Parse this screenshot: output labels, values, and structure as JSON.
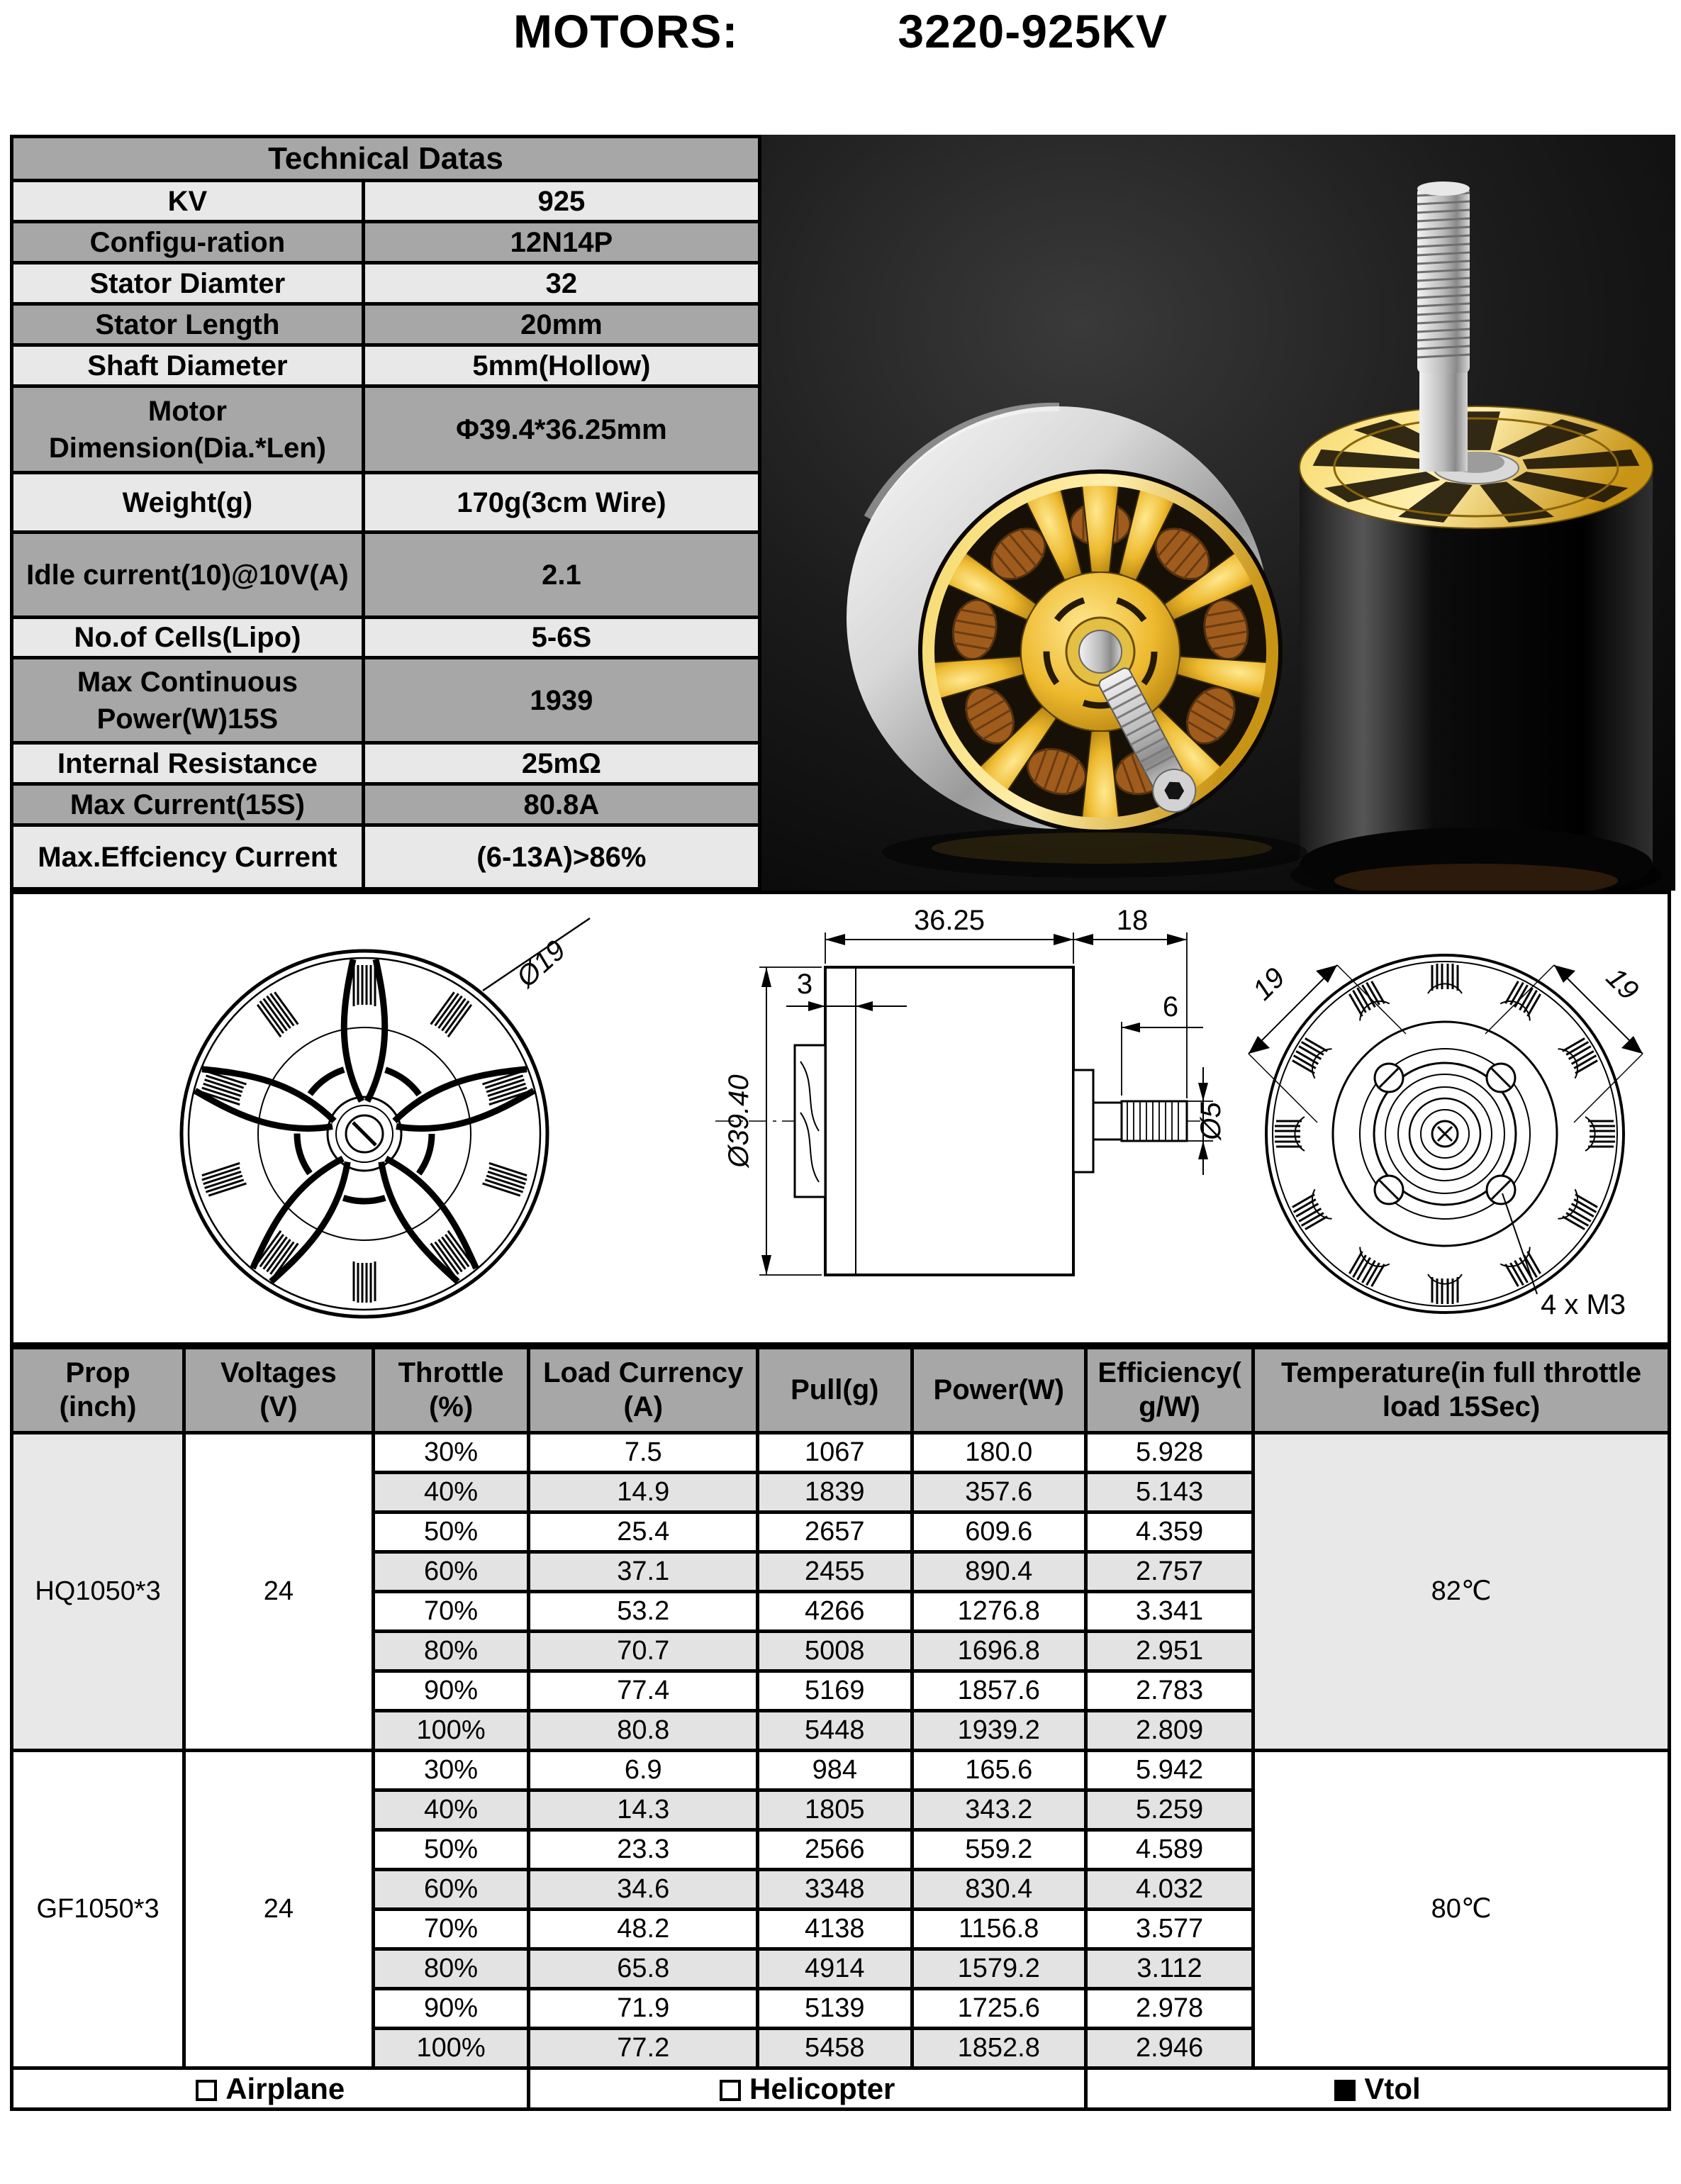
{
  "title": {
    "brand_label": "MOTORS:",
    "model": "3220-925KV"
  },
  "tech_table": {
    "header": "Technical Datas",
    "rows": [
      {
        "label": "KV",
        "value": "925"
      },
      {
        "label": "Configu-ration",
        "value": "12N14P"
      },
      {
        "label": "Stator Diamter",
        "value": "32"
      },
      {
        "label": "Stator Length",
        "value": "20mm"
      },
      {
        "label": "Shaft Diameter",
        "value": "5mm(Hollow)"
      },
      {
        "label": "Motor Dimension(Dia.*Len)",
        "value": "Φ39.4*36.25mm"
      },
      {
        "label": "Weight(g)",
        "value": "170g(3cm Wire)"
      },
      {
        "label": "Idle current(10)@10V(A)",
        "value": "2.1"
      },
      {
        "label": "No.of Cells(Lipo)",
        "value": "5-6S"
      },
      {
        "label": "Max Continuous Power(W)15S",
        "value": "1939"
      },
      {
        "label": "Internal Resistance",
        "value": "25mΩ"
      },
      {
        "label": "Max Current(15S)",
        "value": "80.8A"
      },
      {
        "label": "Max.Effciency Current",
        "value": "(6-13A)>86%"
      }
    ]
  },
  "drawings": {
    "front": {
      "diameter": "Ø19"
    },
    "side": {
      "overall_length": "36.25",
      "shaft_length": "18",
      "step": "3",
      "thread_length": "6",
      "shaft_diameter": "Ø5",
      "body_diameter": "Ø39.40"
    },
    "rear": {
      "pitch_left": "19",
      "pitch_right": "19",
      "mount_holes": "4 x M3"
    }
  },
  "perf_table": {
    "headers": [
      [
        "Prop",
        "(inch)"
      ],
      [
        "Voltages",
        "(V)"
      ],
      [
        "Throttle",
        "(%)"
      ],
      [
        "Load Currency",
        "(A)"
      ],
      [
        "Pull(g)"
      ],
      [
        "Power(W)"
      ],
      [
        "Efficiency(",
        "g/W)"
      ],
      [
        "Temperature(in full throttle",
        "load 15Sec)"
      ]
    ],
    "groups": [
      {
        "prop": "HQ1050*3",
        "voltage": "24",
        "temperature": "82℃",
        "rows": [
          [
            "30%",
            "7.5",
            "1067",
            "180.0",
            "5.928"
          ],
          [
            "40%",
            "14.9",
            "1839",
            "357.6",
            "5.143"
          ],
          [
            "50%",
            "25.4",
            "2657",
            "609.6",
            "4.359"
          ],
          [
            "60%",
            "37.1",
            "2455",
            "890.4",
            "2.757"
          ],
          [
            "70%",
            "53.2",
            "4266",
            "1276.8",
            "3.341"
          ],
          [
            "80%",
            "70.7",
            "5008",
            "1696.8",
            "2.951"
          ],
          [
            "90%",
            "77.4",
            "5169",
            "1857.6",
            "2.783"
          ],
          [
            "100%",
            "80.8",
            "5448",
            "1939.2",
            "2.809"
          ]
        ]
      },
      {
        "prop": "GF1050*3",
        "voltage": "24",
        "temperature": "80℃",
        "rows": [
          [
            "30%",
            "6.9",
            "984",
            "165.6",
            "5.942"
          ],
          [
            "40%",
            "14.3",
            "1805",
            "343.2",
            "5.259"
          ],
          [
            "50%",
            "23.3",
            "2566",
            "559.2",
            "4.589"
          ],
          [
            "60%",
            "34.6",
            "3348",
            "830.4",
            "4.032"
          ],
          [
            "70%",
            "48.2",
            "4138",
            "1156.8",
            "3.577"
          ],
          [
            "80%",
            "65.8",
            "4914",
            "1579.2",
            "3.112"
          ],
          [
            "90%",
            "71.9",
            "5139",
            "1725.6",
            "2.978"
          ],
          [
            "100%",
            "77.2",
            "5458",
            "1852.8",
            "2.946"
          ]
        ]
      }
    ],
    "footer": [
      {
        "label": "Airplane",
        "checked": false
      },
      {
        "label": "Helicopter",
        "checked": false
      },
      {
        "label": "Vtol",
        "checked": true
      }
    ]
  }
}
